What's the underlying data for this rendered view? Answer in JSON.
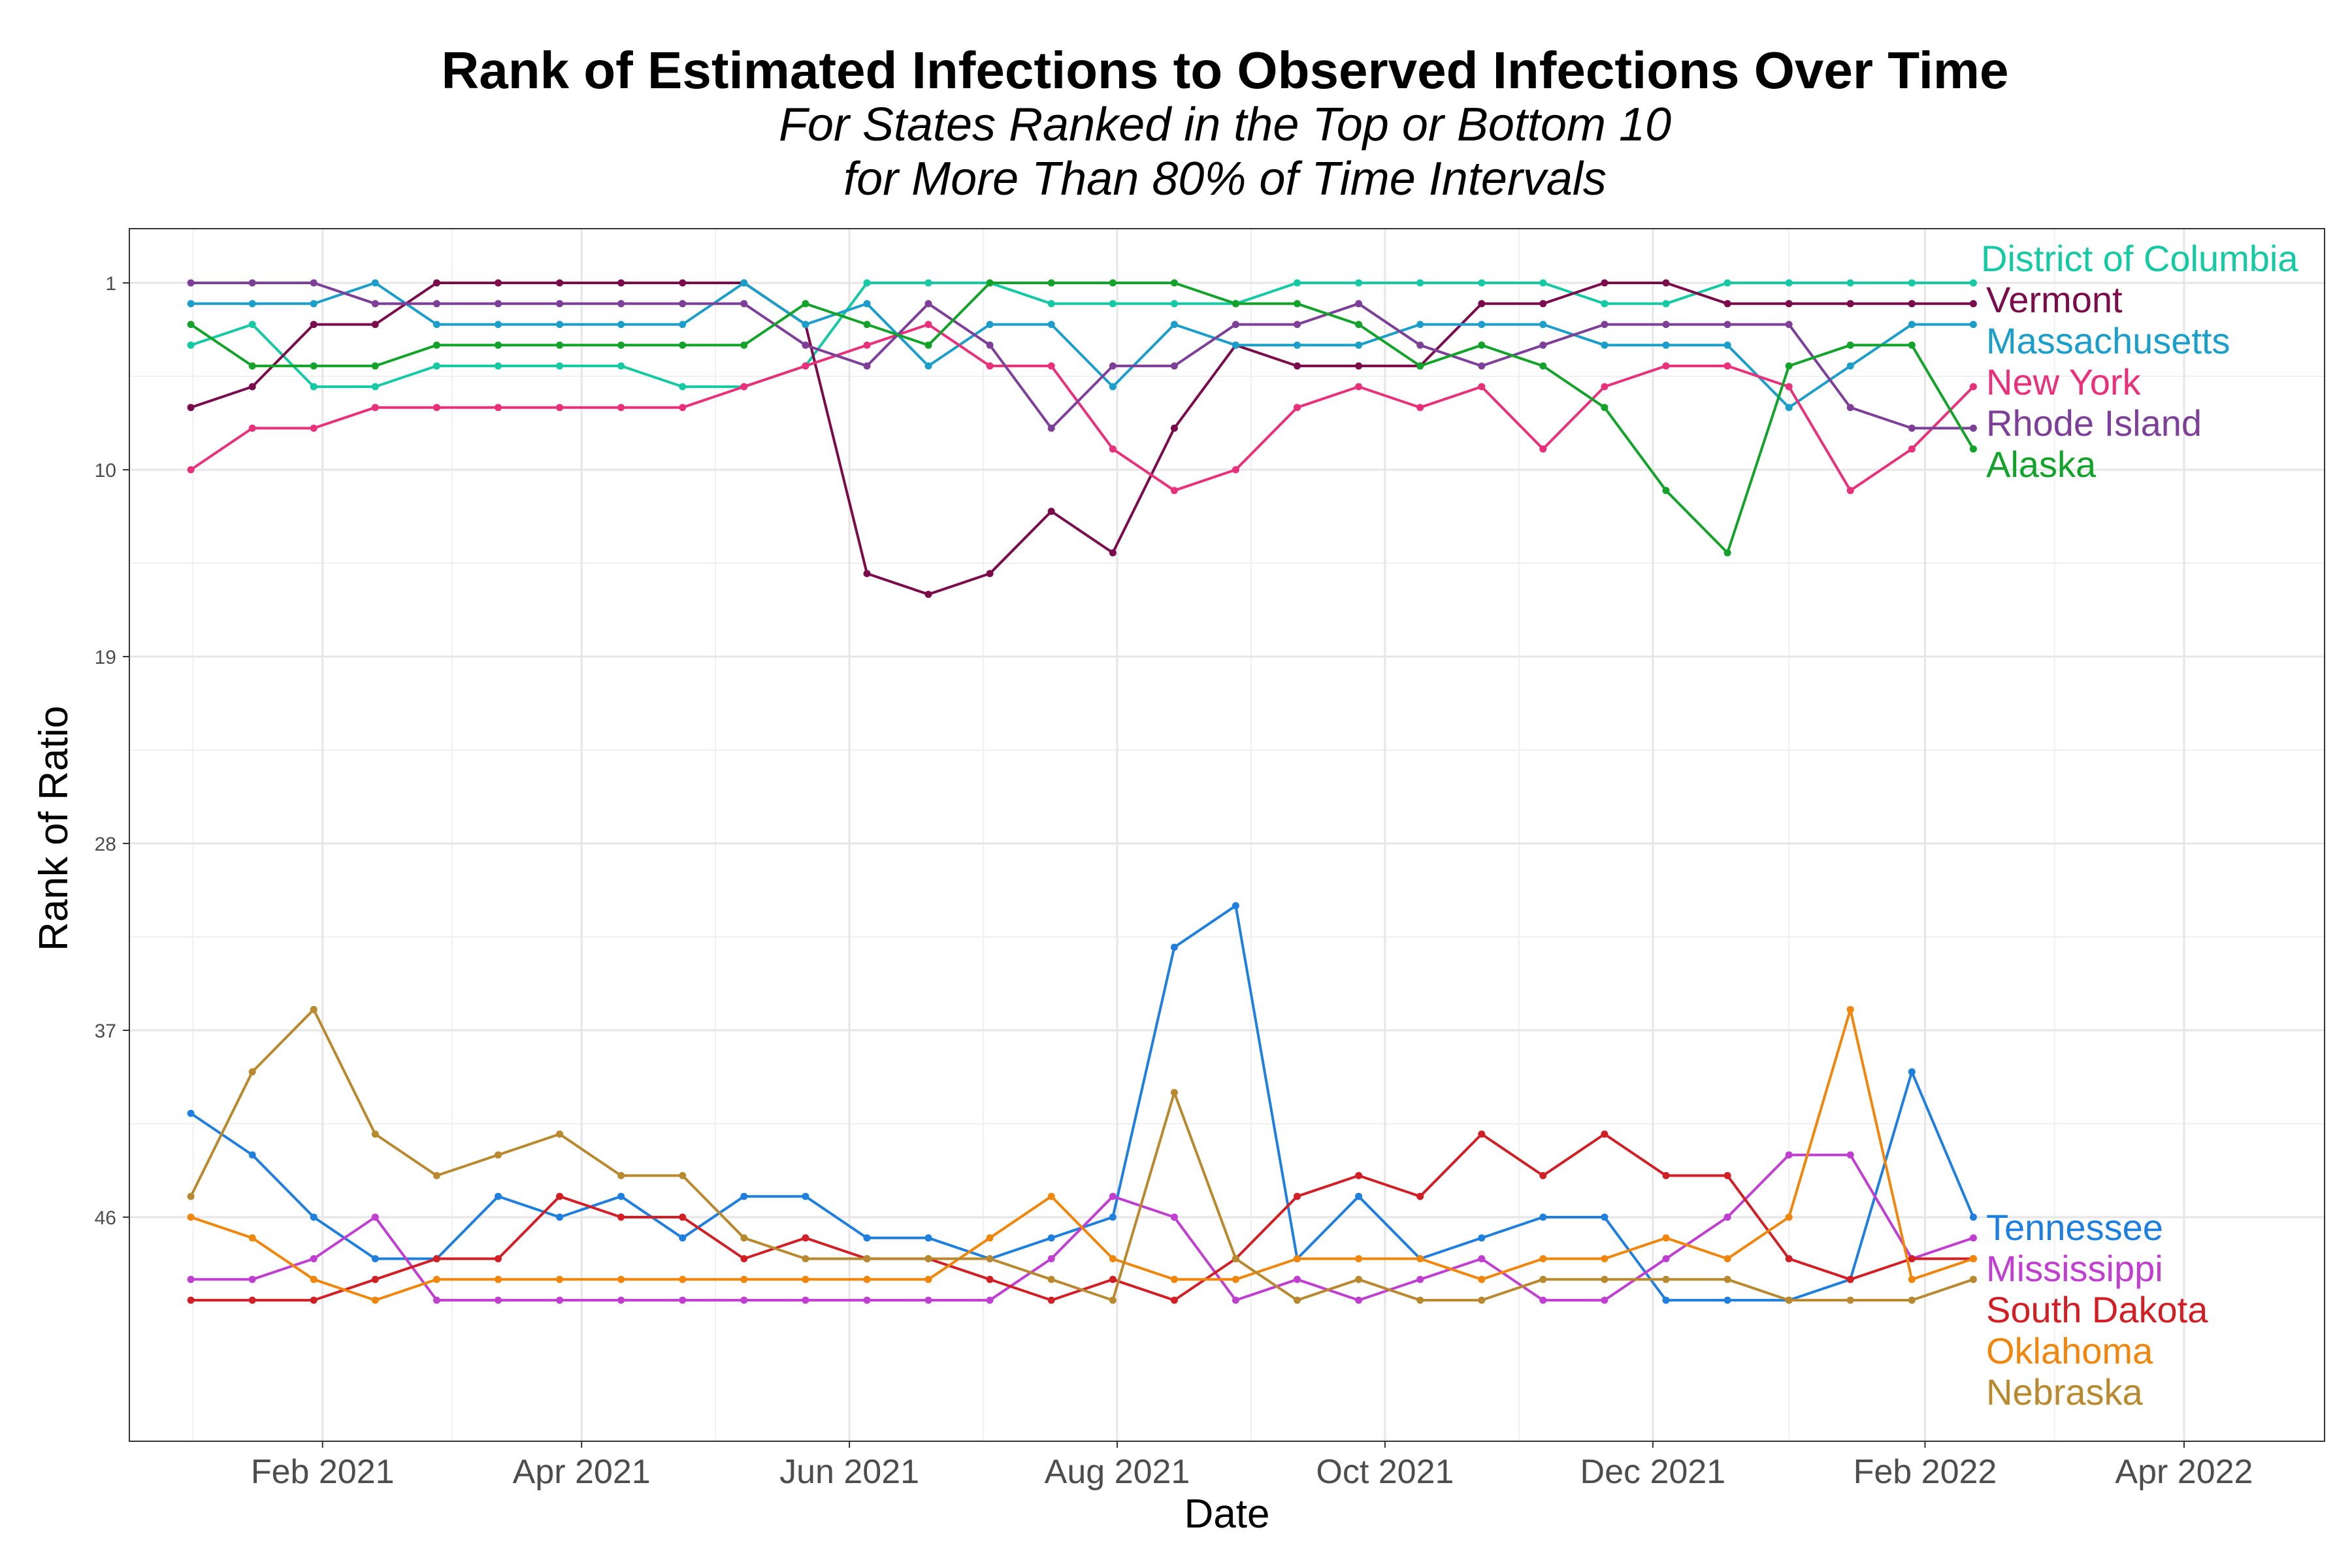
{
  "chart_data": {
    "type": "line",
    "title": "Rank of Estimated Infections to Observed Infections Over Time",
    "subtitle_lines": [
      "For States Ranked in the Top or Bottom 10",
      "for More Than 80% of Time Intervals"
    ],
    "xlabel": "Date",
    "ylabel": "Rank of Ratio",
    "y_reversed": true,
    "ylim": [
      1,
      52
    ],
    "yticks": [
      1,
      10,
      19,
      28,
      37,
      46
    ],
    "xlim": [
      "2020-12-19",
      "2022-05-03"
    ],
    "xticks": [
      {
        "label": "Feb 2021",
        "date": "2021-02-01"
      },
      {
        "label": "Apr 2021",
        "date": "2021-04-01"
      },
      {
        "label": "Jun 2021",
        "date": "2021-06-01"
      },
      {
        "label": "Aug 2021",
        "date": "2021-08-01"
      },
      {
        "label": "Oct 2021",
        "date": "2021-10-01"
      },
      {
        "label": "Dec 2021",
        "date": "2021-12-01"
      },
      {
        "label": "Feb 2022",
        "date": "2022-02-01"
      },
      {
        "label": "Apr 2022",
        "date": "2022-04-01"
      }
    ],
    "grid": true,
    "legend": "inline labels at right end of lines",
    "x_dates": [
      "2021-01-02",
      "2021-01-16",
      "2021-01-30",
      "2021-02-13",
      "2021-02-27",
      "2021-03-13",
      "2021-03-27",
      "2021-04-10",
      "2021-04-24",
      "2021-05-08",
      "2021-05-22",
      "2021-06-05",
      "2021-06-19",
      "2021-07-03",
      "2021-07-17",
      "2021-07-31",
      "2021-08-14",
      "2021-08-28",
      "2021-09-11",
      "2021-09-25",
      "2021-10-09",
      "2021-10-23",
      "2021-11-06",
      "2021-11-20",
      "2021-12-04",
      "2021-12-18",
      "2022-01-01",
      "2022-01-15",
      "2022-01-29",
      "2022-02-12"
    ],
    "series": [
      {
        "name": "District of Columbia",
        "color": "#14c9a3",
        "values": [
          4,
          3,
          6,
          6,
          5,
          5,
          5,
          5,
          6,
          6,
          5,
          1,
          1,
          1,
          2,
          2,
          2,
          2,
          1,
          1,
          1,
          1,
          1,
          2,
          2,
          1,
          1,
          1,
          1,
          1
        ]
      },
      {
        "name": "Vermont",
        "color": "#7a0c4c",
        "values": [
          7,
          6,
          3,
          3,
          1,
          1,
          1,
          1,
          1,
          1,
          3,
          15,
          16,
          15,
          12,
          14,
          8,
          4,
          5,
          5,
          5,
          2,
          2,
          1,
          1,
          2,
          2,
          2,
          2,
          2
        ]
      },
      {
        "name": "Massachusetts",
        "color": "#1b9ec9",
        "values": [
          2,
          2,
          2,
          1,
          3,
          3,
          3,
          3,
          3,
          1,
          3,
          2,
          5,
          3,
          3,
          6,
          3,
          4,
          4,
          4,
          3,
          3,
          3,
          4,
          4,
          4,
          7,
          5,
          3,
          3
        ]
      },
      {
        "name": "New York",
        "color": "#e8317a",
        "values": [
          10,
          8,
          8,
          7,
          7,
          7,
          7,
          7,
          7,
          6,
          5,
          4,
          3,
          5,
          5,
          9,
          11,
          10,
          7,
          6,
          7,
          6,
          9,
          6,
          5,
          5,
          6,
          11,
          9,
          6
        ]
      },
      {
        "name": "Rhode Island",
        "color": "#7d3f98",
        "values": [
          1,
          1,
          1,
          2,
          2,
          2,
          2,
          2,
          2,
          2,
          4,
          5,
          2,
          4,
          8,
          5,
          5,
          3,
          3,
          2,
          4,
          5,
          4,
          3,
          3,
          3,
          3,
          7,
          8,
          8
        ]
      },
      {
        "name": "Alaska",
        "color": "#13a32a",
        "values": [
          3,
          5,
          5,
          5,
          4,
          4,
          4,
          4,
          4,
          4,
          2,
          3,
          4,
          1,
          1,
          1,
          1,
          2,
          2,
          3,
          5,
          4,
          5,
          7,
          11,
          14,
          5,
          4,
          4,
          9
        ]
      },
      {
        "name": "Tennessee",
        "color": "#1e7fde",
        "values": [
          41,
          43,
          46,
          48,
          48,
          45,
          46,
          45,
          47,
          45,
          45,
          47,
          47,
          48,
          47,
          46,
          33,
          31,
          48,
          45,
          48,
          47,
          46,
          46,
          50,
          50,
          50,
          49,
          39,
          46
        ]
      },
      {
        "name": "Mississippi",
        "color": "#c03fd1",
        "values": [
          49,
          49,
          48,
          46,
          50,
          50,
          50,
          50,
          50,
          50,
          50,
          50,
          50,
          50,
          48,
          45,
          46,
          50,
          49,
          50,
          49,
          48,
          50,
          50,
          48,
          46,
          43,
          43,
          48,
          47
        ]
      },
      {
        "name": "South Dakota",
        "color": "#d11f25",
        "values": [
          50,
          50,
          50,
          49,
          48,
          48,
          45,
          46,
          46,
          48,
          47,
          48,
          48,
          49,
          50,
          49,
          50,
          48,
          45,
          44,
          45,
          42,
          44,
          42,
          44,
          44,
          48,
          49,
          48,
          48
        ]
      },
      {
        "name": "Oklahoma",
        "color": "#f0860c",
        "values": [
          46,
          47,
          49,
          50,
          49,
          49,
          49,
          49,
          49,
          49,
          49,
          49,
          49,
          47,
          45,
          48,
          49,
          49,
          48,
          48,
          48,
          49,
          48,
          48,
          47,
          48,
          46,
          36,
          49,
          48
        ]
      },
      {
        "name": "Nebraska",
        "color": "#b8892f",
        "values": [
          45,
          39,
          36,
          42,
          44,
          43,
          42,
          44,
          44,
          47,
          48,
          48,
          48,
          48,
          49,
          50,
          40,
          48,
          50,
          49,
          50,
          50,
          49,
          49,
          49,
          49,
          50,
          50,
          50,
          49
        ]
      }
    ]
  }
}
